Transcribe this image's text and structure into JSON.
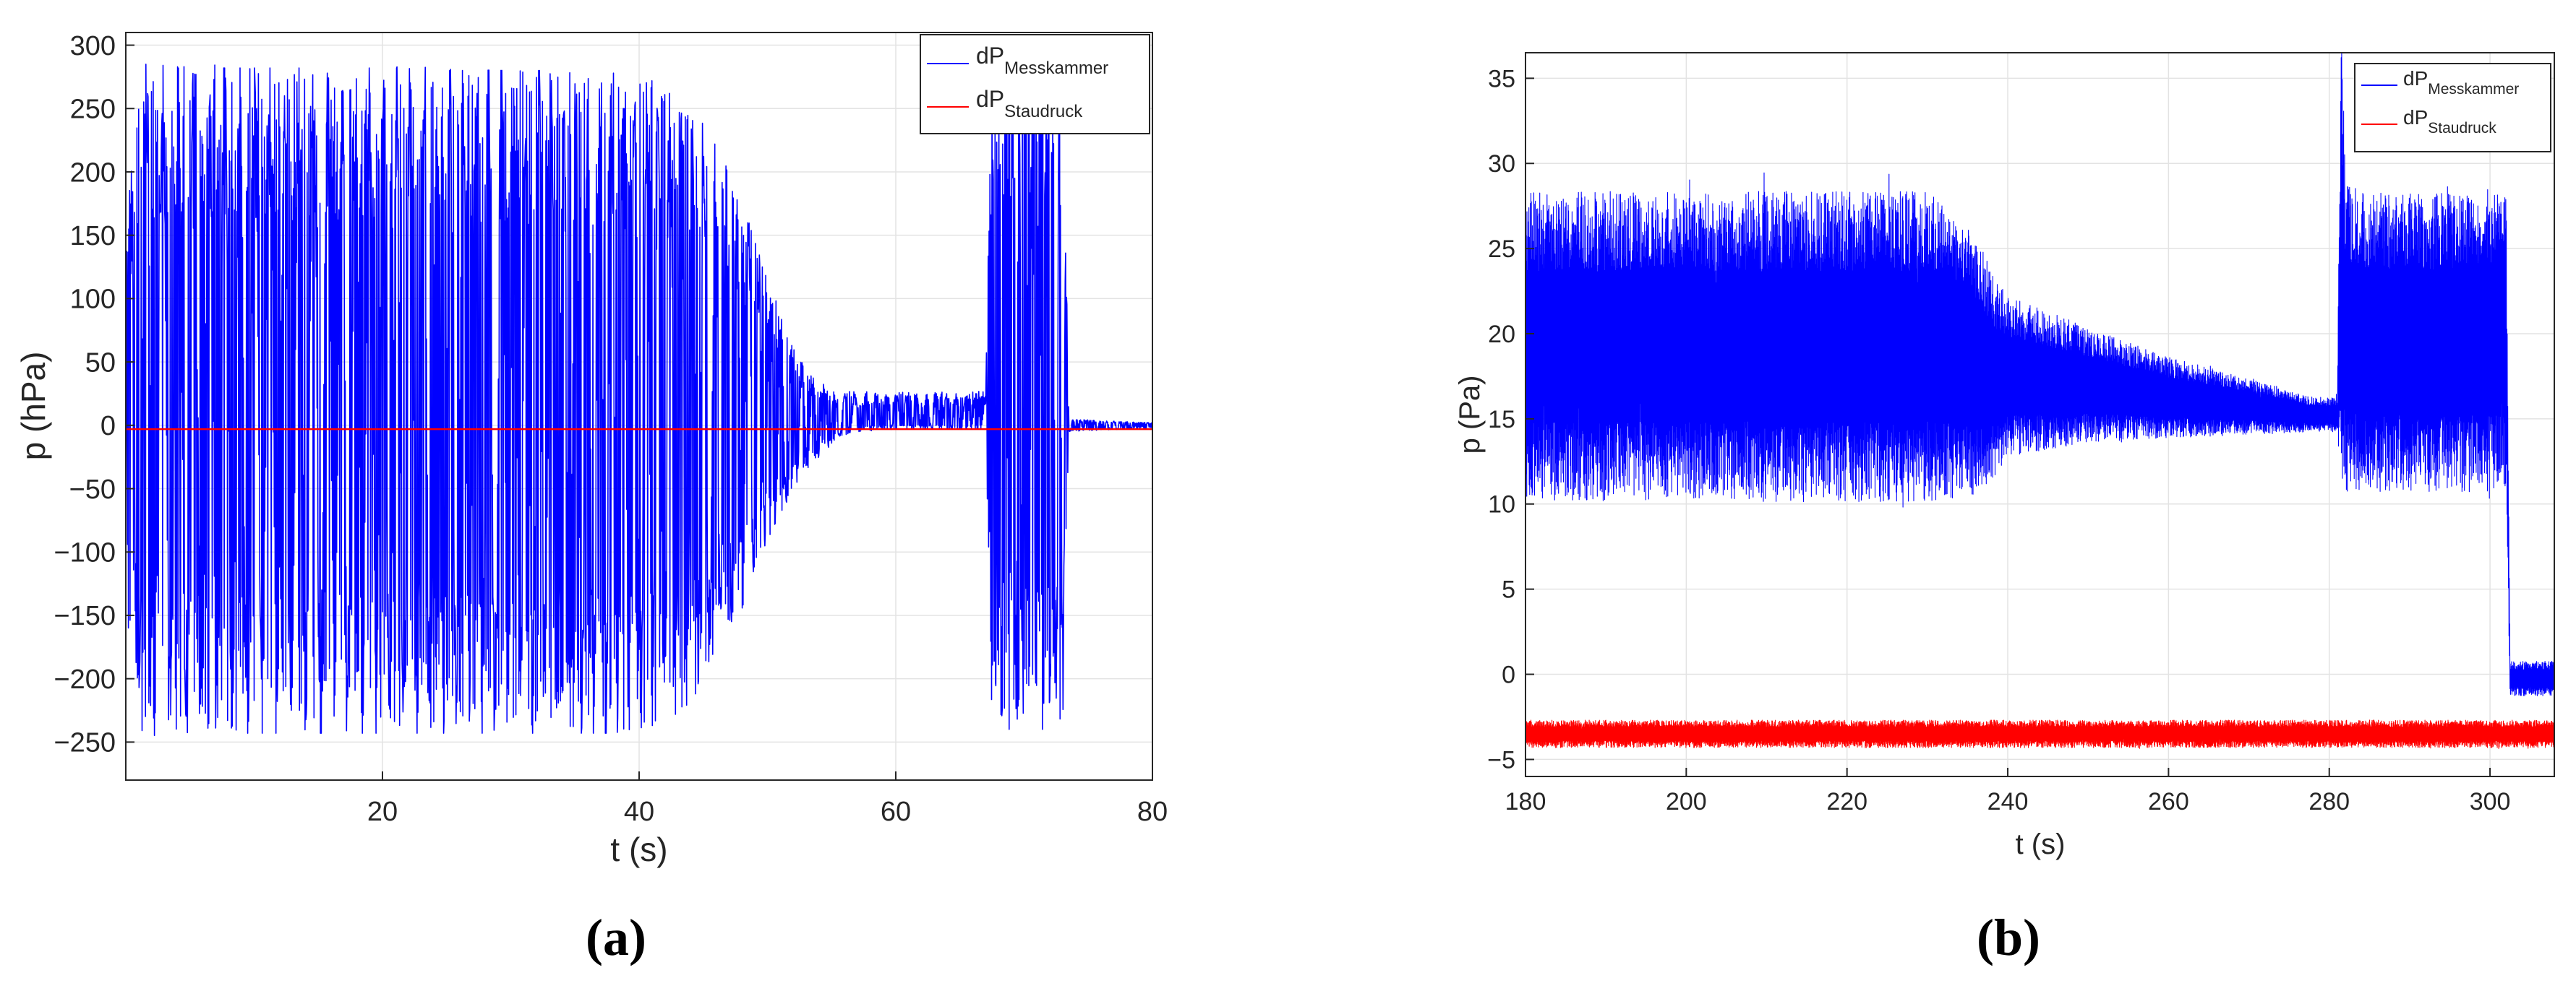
{
  "colors": {
    "messkammer": "#0000ff",
    "staudruck": "#ff0000",
    "grid": "#e3e3e3",
    "axis": "#262626"
  },
  "chart_data": [
    {
      "type": "line",
      "panel_label": "(a)",
      "xlabel": "t (s)",
      "ylabel": "p (hPa)",
      "xlim": [
        0,
        80
      ],
      "ylim": [
        -280,
        310
      ],
      "xticks": [
        20,
        40,
        60,
        80
      ],
      "yticks": [
        -250,
        -200,
        -150,
        -100,
        -50,
        0,
        50,
        100,
        150,
        200,
        250,
        300
      ],
      "grid": true,
      "legend_position": "top-right",
      "series": [
        {
          "name": "dPMesskammer",
          "name_main": "dP",
          "name_sub": "Messkammer",
          "color": "#0000ff",
          "kind": "oscillating envelope",
          "envelope_x": [
            0,
            1,
            2,
            5,
            10,
            20,
            30,
            38,
            42,
            45,
            47,
            49,
            51,
            52,
            53,
            54,
            55,
            56,
            57,
            60,
            64,
            67,
            67.5,
            73,
            73.5,
            80
          ],
          "envelope_max": [
            150,
            285,
            285,
            282,
            282,
            282,
            280,
            280,
            265,
            240,
            200,
            150,
            90,
            60,
            45,
            35,
            28,
            25,
            25,
            25,
            25,
            25,
            300,
            300,
            5,
            2
          ],
          "envelope_min": [
            -150,
            -245,
            -245,
            -243,
            -243,
            -243,
            -243,
            -243,
            -235,
            -210,
            -170,
            -120,
            -75,
            -50,
            -35,
            -25,
            -15,
            -8,
            -5,
            -3,
            -3,
            -3,
            -240,
            -240,
            -5,
            -2
          ]
        },
        {
          "name": "dPStaudruck",
          "name_main": "dP",
          "name_sub": "Staudruck",
          "color": "#ff0000",
          "kind": "flat",
          "x": [
            0,
            80
          ],
          "y": [
            -3,
            -3
          ]
        }
      ]
    },
    {
      "type": "line",
      "panel_label": "(b)",
      "xlabel": "t (s)",
      "ylabel": "p (Pa)",
      "xlim": [
        180,
        308
      ],
      "ylim": [
        -6,
        36.5
      ],
      "xticks": [
        180,
        200,
        220,
        240,
        260,
        280,
        300
      ],
      "yticks": [
        -5,
        0,
        5,
        10,
        15,
        20,
        25,
        30,
        35
      ],
      "grid": true,
      "legend_position": "top-right",
      "series": [
        {
          "name": "dPMesskammer",
          "name_main": "dP",
          "name_sub": "Messkammer",
          "color": "#0000ff",
          "kind": "noisy band",
          "envelope_x": [
            180,
            200,
            220,
            230,
            235,
            238,
            240,
            250,
            260,
            270,
            278,
            281,
            281.5,
            282,
            285,
            295,
            302,
            302.5,
            303,
            308
          ],
          "envelope_max": [
            26,
            26,
            26,
            26,
            25,
            22,
            21,
            19.5,
            18,
            17,
            16,
            16,
            36.5,
            26.5,
            26,
            26,
            26,
            0.5,
            0.5,
            0.5
          ],
          "envelope_min": [
            12.5,
            12.5,
            12.5,
            12.5,
            12.5,
            13,
            14,
            14.5,
            14.5,
            14.5,
            14.5,
            14.5,
            14.5,
            13,
            13,
            13,
            13,
            -1,
            -1,
            -1
          ]
        },
        {
          "name": "dPStaudruck",
          "name_main": "dP",
          "name_sub": "Staudruck",
          "color": "#ff0000",
          "kind": "noisy band",
          "envelope_x": [
            180,
            308
          ],
          "envelope_max": [
            -2.9,
            -2.9
          ],
          "envelope_min": [
            -4.1,
            -4.1
          ]
        }
      ]
    }
  ]
}
